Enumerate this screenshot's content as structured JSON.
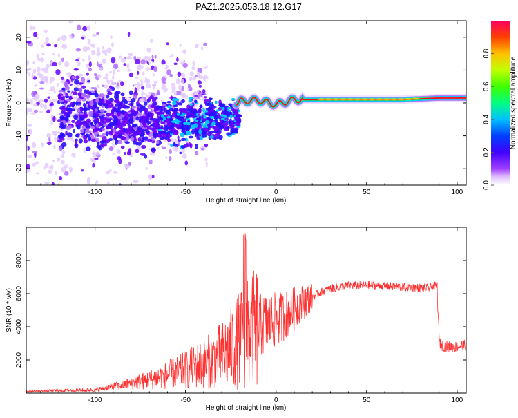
{
  "chart_data": [
    {
      "type": "heatmap",
      "title": "PAZ1.2025.053.18.12.G17",
      "xlabel": "Height of straight line (km)",
      "ylabel": "Frequency (Hz)",
      "xlim": [
        -138,
        105
      ],
      "ylim": [
        -25,
        25
      ],
      "xticks": [
        -100,
        -50,
        0,
        50,
        100
      ],
      "yticks": [
        -20,
        -10,
        0,
        10,
        20
      ],
      "colorbar": {
        "label": "Normalized spectral amplitude",
        "range": [
          0,
          1
        ],
        "ticks": [
          "0.0",
          "0.2",
          "0.4",
          "0.6",
          "0.8"
        ],
        "colors": [
          "#ffffff",
          "#c060ff",
          "#6000ff",
          "#0000ff",
          "#00c0ff",
          "#00ff60",
          "#a0ff00",
          "#ffe000",
          "#ff8000",
          "#ff0000",
          "#ff0060"
        ]
      },
      "ridge": [
        {
          "height": -20,
          "frequency": 0.5
        },
        {
          "height": -10,
          "frequency": 0.8
        },
        {
          "height": 0,
          "frequency": -0.5
        },
        {
          "height": 10,
          "frequency": 1.0
        },
        {
          "height": 30,
          "frequency": 1.0
        },
        {
          "height": 50,
          "frequency": 1.0
        },
        {
          "height": 70,
          "frequency": 1.0
        },
        {
          "height": 90,
          "frequency": 1.5
        },
        {
          "height": 105,
          "frequency": 1.5
        }
      ]
    },
    {
      "type": "line",
      "xlabel": "Height of straight line (km)",
      "ylabel": "SNR (10 * v/v)",
      "xlim": [
        -138,
        105
      ],
      "ylim": [
        0,
        10000
      ],
      "xticks": [
        -100,
        -50,
        0,
        50,
        100
      ],
      "yticks": [
        2000,
        4000,
        6000,
        8000
      ],
      "color": "#ff3030",
      "series": [
        {
          "x": [
            -138,
            -120,
            -100,
            -90,
            -80,
            -70,
            -60,
            -50,
            -45,
            -40,
            -35,
            -30,
            -25,
            -22,
            -20,
            -17,
            -15,
            -12,
            -10,
            -5,
            0,
            5,
            10,
            15,
            20,
            25,
            30,
            35,
            40,
            50,
            60,
            70,
            80,
            85,
            89,
            90,
            91,
            95,
            100,
            105
          ],
          "values": [
            100,
            150,
            200,
            400,
            600,
            800,
            1100,
            1400,
            1600,
            1800,
            2000,
            2300,
            2700,
            3000,
            3200,
            3400,
            3600,
            3800,
            4000,
            4200,
            4400,
            4700,
            5100,
            5500,
            5800,
            6100,
            6300,
            6400,
            6500,
            6500,
            6450,
            6400,
            6350,
            6350,
            6500,
            3200,
            2900,
            2800,
            2800,
            2900
          ]
        }
      ]
    }
  ]
}
